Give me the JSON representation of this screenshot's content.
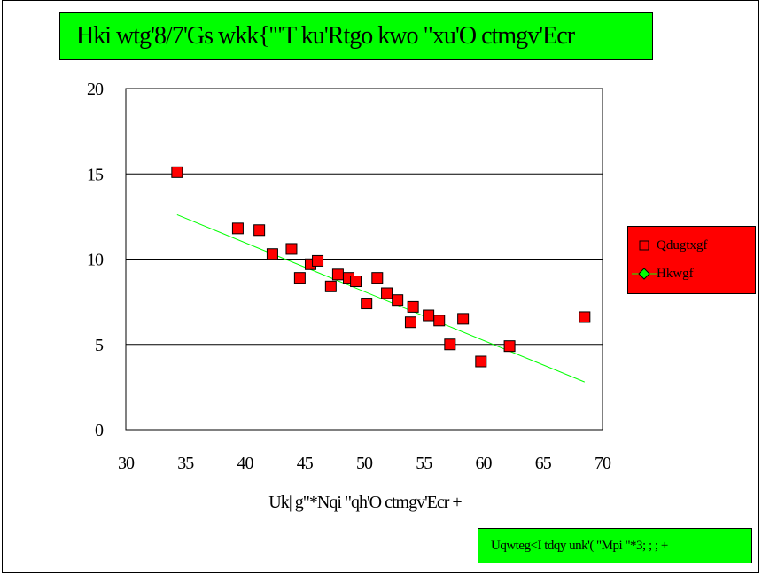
{
  "chart_data": {
    "type": "scatter",
    "title": "Hki wtg'8/7'Gs wkk{'\"T ku'Rtgo kwo \"xu'O ctmgv'Ecr",
    "xlabel": "Uk| g\"*Nqi \"qh'O ctmgv'Ecr +",
    "ylabel": "",
    "source": "Uqwteg<I tdqy unk'( \"Mpi \"*3; ; ; +",
    "xlim": [
      3.0,
      7.0
    ],
    "ylim": [
      0,
      20
    ],
    "x_ticks": [
      3.0,
      3.5,
      4.0,
      4.5,
      5.0,
      5.5,
      6.0,
      6.5,
      7.0
    ],
    "x_tick_labels": [
      "30",
      "35",
      "40",
      "45",
      "50",
      "55",
      "60",
      "65",
      "70"
    ],
    "y_ticks": [
      0,
      5,
      10,
      15,
      20
    ],
    "y_tick_labels": [
      "0",
      "5",
      "10",
      "15",
      "20"
    ],
    "grid": "horizontal",
    "legend_position": "right",
    "series": [
      {
        "name": "Qdugtxgf",
        "marker": "square",
        "color": "#ff0000",
        "points": [
          [
            3.43,
            15.1
          ],
          [
            3.94,
            11.8
          ],
          [
            4.12,
            11.7
          ],
          [
            4.23,
            10.3
          ],
          [
            4.39,
            10.6
          ],
          [
            4.46,
            8.9
          ],
          [
            4.55,
            9.7
          ],
          [
            4.61,
            9.9
          ],
          [
            4.72,
            8.4
          ],
          [
            4.78,
            9.1
          ],
          [
            4.87,
            8.9
          ],
          [
            4.93,
            8.7
          ],
          [
            5.02,
            7.4
          ],
          [
            5.11,
            8.9
          ],
          [
            5.19,
            8.0
          ],
          [
            5.28,
            7.6
          ],
          [
            5.39,
            6.3
          ],
          [
            5.41,
            7.2
          ],
          [
            5.54,
            6.7
          ],
          [
            5.63,
            6.4
          ],
          [
            5.72,
            5.0
          ],
          [
            5.83,
            6.5
          ],
          [
            5.98,
            4.0
          ],
          [
            6.22,
            4.9
          ],
          [
            6.85,
            6.6
          ]
        ]
      },
      {
        "name": "Hkwgf",
        "marker": "diamond",
        "color": "#00ff00",
        "points": [
          [
            3.43,
            12.6
          ],
          [
            6.85,
            2.8
          ]
        ]
      }
    ]
  }
}
